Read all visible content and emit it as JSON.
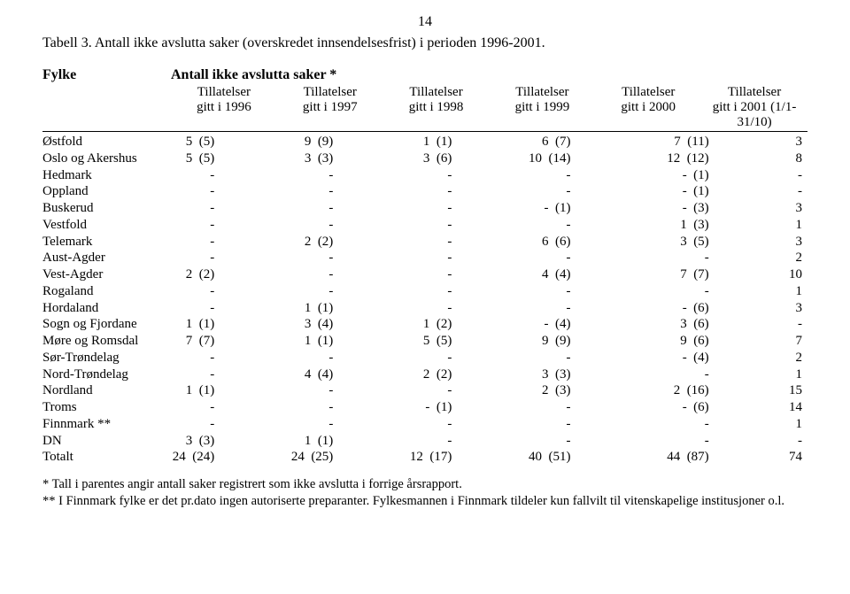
{
  "page_number": "14",
  "caption": "Tabell 3. Antall ikke avslutta saker (overskredet innsendelsesfrist) i perioden 1996-2001.",
  "header": {
    "fylke": "Fylke",
    "antall": "Antall ikke avslutta saker  *"
  },
  "subheader_label": "Tillatelser",
  "gitt_labels": [
    "gitt i 1996",
    "gitt i 1997",
    "gitt i 1998",
    "gitt i 1999",
    "gitt i 2000",
    "gitt i 2001 (1/1-31/10)"
  ],
  "rows": [
    {
      "name": "Østfold",
      "c": [
        "5  (5)",
        "9  (9)",
        "1  (1)",
        "6  (7)",
        "7  (11)",
        "3"
      ]
    },
    {
      "name": "Oslo og Akershus",
      "c": [
        "5  (5)",
        "3  (3)",
        "3  (6)",
        "10  (14)",
        "12  (12)",
        "8"
      ]
    },
    {
      "name": "Hedmark",
      "c": [
        "-",
        "-",
        "-",
        "-",
        "-  (1)",
        "-"
      ]
    },
    {
      "name": "Oppland",
      "c": [
        "-",
        "-",
        "-",
        "-",
        "-  (1)",
        "-"
      ]
    },
    {
      "name": "Buskerud",
      "c": [
        "-",
        "-",
        "-",
        "-  (1)",
        "-  (3)",
        "3"
      ]
    },
    {
      "name": "Vestfold",
      "c": [
        "-",
        "-",
        "-",
        "-",
        "1  (3)",
        "1"
      ]
    },
    {
      "name": "Telemark",
      "c": [
        "-",
        "2  (2)",
        "-",
        "6  (6)",
        "3  (5)",
        "3"
      ]
    },
    {
      "name": "Aust-Agder",
      "c": [
        "-",
        "-",
        "-",
        "-",
        "-",
        "2"
      ]
    },
    {
      "name": "Vest-Agder",
      "c": [
        "2  (2)",
        "-",
        "-",
        "4  (4)",
        "7  (7)",
        "10"
      ]
    },
    {
      "name": "Rogaland",
      "c": [
        "-",
        "-",
        "-",
        "-",
        "-",
        "1"
      ]
    },
    {
      "name": "Hordaland",
      "c": [
        "-",
        "1  (1)",
        "-",
        "-",
        "-  (6)",
        "3"
      ]
    },
    {
      "name": "Sogn og Fjordane",
      "c": [
        "1  (1)",
        "3  (4)",
        "1  (2)",
        "-  (4)",
        "3  (6)",
        "-"
      ]
    },
    {
      "name": "Møre og Romsdal",
      "c": [
        "7  (7)",
        "1  (1)",
        "5  (5)",
        "9  (9)",
        "9  (6)",
        "7"
      ]
    },
    {
      "name": "Sør-Trøndelag",
      "c": [
        "-",
        "-",
        "-",
        "-",
        "-  (4)",
        "2"
      ]
    },
    {
      "name": "Nord-Trøndelag",
      "c": [
        "-",
        "4  (4)",
        "2  (2)",
        "3  (3)",
        "-",
        "1"
      ]
    },
    {
      "name": "Nordland",
      "c": [
        "1  (1)",
        "-",
        "-",
        "2  (3)",
        "2  (16)",
        "15"
      ]
    },
    {
      "name": "Troms",
      "c": [
        "-",
        "-",
        "-  (1)",
        "-",
        "-  (6)",
        "14"
      ]
    },
    {
      "name": "Finnmark **",
      "c": [
        "-",
        "-",
        "-",
        "-",
        "-",
        "1"
      ]
    },
    {
      "name": "DN",
      "c": [
        "3  (3)",
        "1  (1)",
        "-",
        "-",
        "-",
        "-"
      ]
    },
    {
      "name": "Totalt",
      "c": [
        "24  (24)",
        "24  (25)",
        "12  (17)",
        "40  (51)",
        "44  (87)",
        "74"
      ]
    }
  ],
  "footnotes": [
    "* Tall i parentes angir antall saker registrert som ikke avslutta i forrige årsrapport.",
    "** I Finnmark fylke er det pr.dato ingen autoriserte preparanter. Fylkesmannen i Finnmark tildeler kun fallvilt til vitenskapelige institusjoner o.l."
  ]
}
